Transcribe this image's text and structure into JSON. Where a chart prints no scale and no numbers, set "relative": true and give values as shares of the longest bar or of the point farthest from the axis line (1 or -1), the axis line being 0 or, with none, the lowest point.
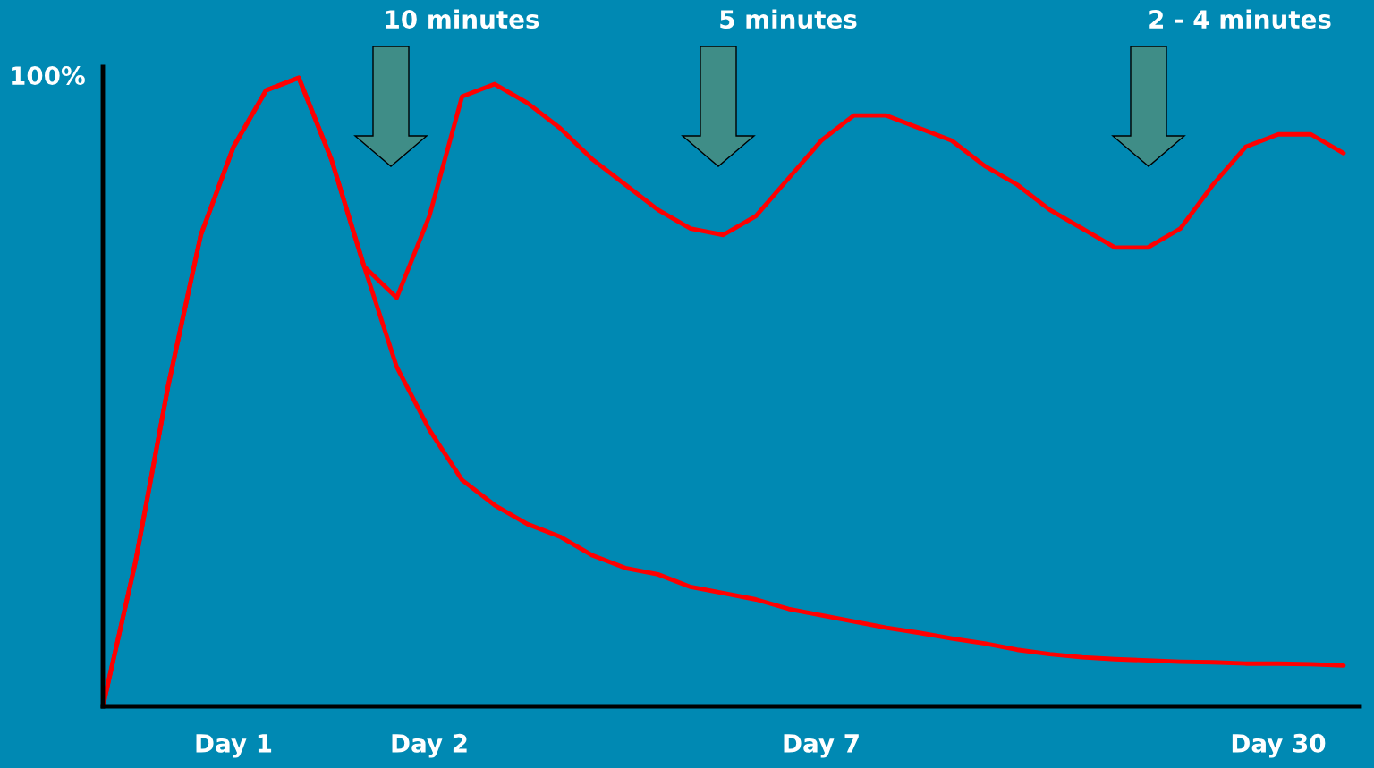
{
  "chart_data": {
    "type": "line",
    "relative": true,
    "categories": [
      null,
      null,
      null,
      null,
      "Day 1",
      null,
      null,
      null,
      null,
      null,
      "Day 2",
      null,
      null,
      null,
      null,
      null,
      null,
      null,
      null,
      null,
      null,
      null,
      "Day 7",
      null,
      null,
      null,
      null,
      null,
      null,
      null,
      null,
      null,
      null,
      null,
      null,
      null,
      "Day 30",
      null,
      null
    ],
    "series": [
      {
        "color": "#ff0000",
        "values": [
          0,
          0.23,
          0.51,
          0.75,
          0.89,
          0.98,
          1,
          0.87,
          0.7,
          0.54,
          0.44,
          0.36,
          0.32,
          0.29,
          0.27,
          0.24,
          0.22,
          0.21,
          0.19,
          0.18,
          0.17,
          0.155,
          0.145,
          0.135,
          0.125,
          0.117,
          0.108,
          0.1,
          0.09,
          0.083,
          0.078,
          0.075,
          0.073,
          0.071,
          0.07,
          0.068,
          0.068,
          0.067,
          0.065
        ]
      },
      {
        "color": "#ff0000",
        "values": [
          0,
          0.23,
          0.51,
          0.75,
          0.89,
          0.98,
          1,
          0.87,
          0.7,
          0.65,
          0.78,
          0.97,
          0.99,
          0.96,
          0.92,
          0.87,
          0.83,
          0.79,
          0.76,
          0.75,
          0.78,
          0.84,
          0.9,
          0.94,
          0.94,
          0.92,
          0.9,
          0.86,
          0.83,
          0.79,
          0.76,
          0.73,
          0.73,
          0.76,
          0.83,
          0.89,
          0.91,
          0.91,
          0.88
        ]
      }
    ],
    "annotations": [
      "100%",
      "10 minutes",
      "5 minutes",
      "2 - 4 minutes"
    ],
    "marker": "none",
    "line_style": "solid",
    "grid": false
  }
}
